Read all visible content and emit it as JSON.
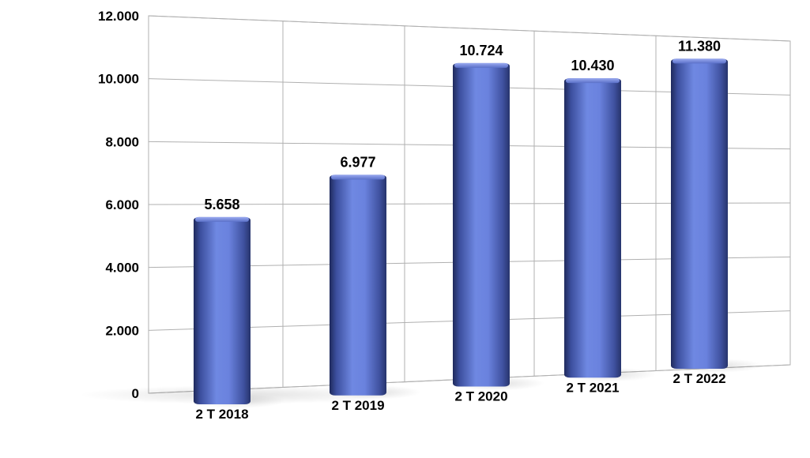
{
  "chart_data": {
    "type": "bar",
    "style": "3d-perspective",
    "title": "",
    "xlabel": "",
    "ylabel": "",
    "categories": [
      "2 T 2018",
      "2 T 2019",
      "2 T 2020",
      "2 T 2021",
      "2 T 2022"
    ],
    "values": [
      5658,
      6977,
      10724,
      10430,
      11380
    ],
    "value_labels": [
      "5.658",
      "6.977",
      "10.724",
      "10.430",
      "11.380"
    ],
    "ylim": [
      0,
      12000
    ],
    "yticks": [
      0,
      2000,
      4000,
      6000,
      8000,
      10000,
      12000
    ],
    "ytick_labels": [
      "0",
      "2.000",
      "4.000",
      "6.000",
      "8.000",
      "10.000",
      "12.000"
    ],
    "grid": true,
    "legend": "none",
    "colors": {
      "bar": "#6a82de",
      "bar_dark": "#2c3a78",
      "grid": "#b0b0b0"
    }
  }
}
